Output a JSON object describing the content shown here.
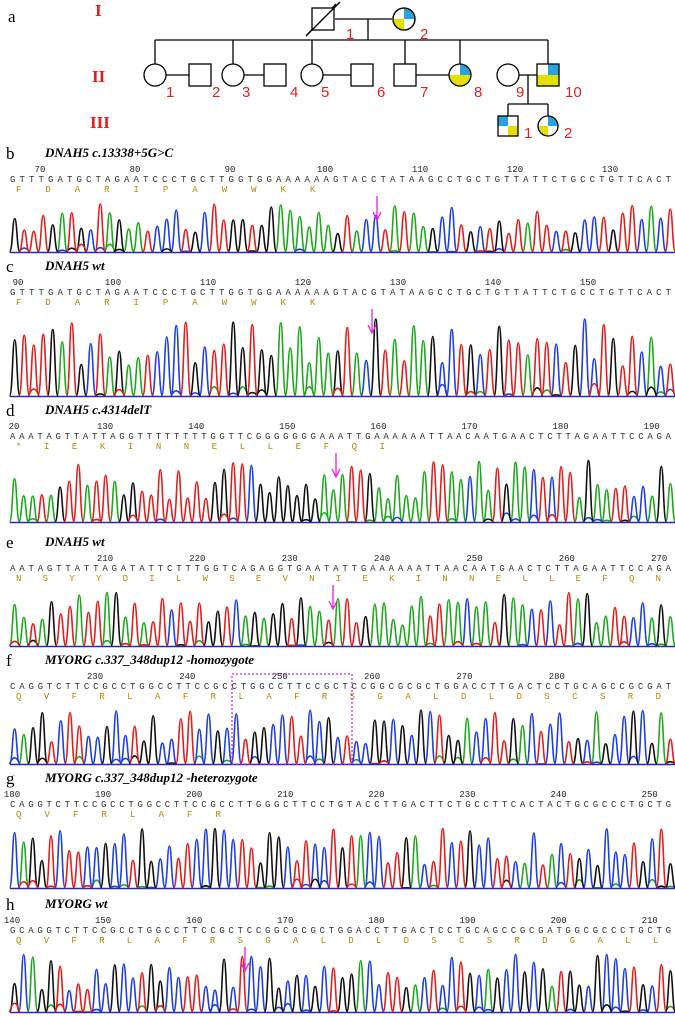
{
  "pedigree": {
    "label": "a",
    "generations": [
      "I",
      "II",
      "III"
    ],
    "individuals": {
      "I": [
        "1",
        "2"
      ],
      "II": [
        "1",
        "2",
        "3",
        "4",
        "5",
        "6",
        "7",
        "8",
        "9",
        "10"
      ],
      "III": [
        "1",
        "2"
      ]
    }
  },
  "panels": [
    {
      "label": "b",
      "title": "DNAH5 c.13338+5G>C",
      "positions": [
        70,
        80,
        90,
        100,
        110,
        120,
        130
      ],
      "sequence": "GTTTGATGCTAGAATCCCTGCTTGGTGGAAAAAAGTACCTATAAGCCTGCTGTTATTCTGCCTGTTCACT",
      "aa": "F D A R I P A W W K K"
    },
    {
      "label": "c",
      "title": "DNAH5  wt",
      "positions": [
        90,
        100,
        110,
        120,
        130,
        140,
        150
      ],
      "sequence": "GTTTGATGCTAGAATCCCTGCTTGGTGGAAAAAAGTACGTATAAGCCTGCTGTTATTCTGCCTGTTCACT",
      "aa": "F D A R I P A W W K K"
    },
    {
      "label": "d",
      "title": "DNAH5 c.4314delT",
      "positions": [
        20,
        130,
        140,
        150,
        160,
        170,
        180,
        190
      ],
      "sequence": "AAATAGTTATTAGGTTTTTTTTGGTTCGGGGGGGAAATTGAAAAAATTAACAATGAACTCTTAGAATTCCAGA",
      "aa": "* I E K I N N E L L E F Q I"
    },
    {
      "label": "e",
      "title": "DNAH5 wt",
      "positions": [
        210,
        220,
        230,
        240,
        250,
        260,
        270
      ],
      "sequence": "AATAGTTATTAGATATTCTTTGGTCAGAGGTGAATATTGAAAAAATTAACAATGAACTCTTAGAATTCCAGA",
      "aa": "N S Y Y D I L W S E V N I E K I N N E L L E F Q N"
    },
    {
      "label": "f",
      "title": "MYORG c.337_348dup12 -homozygote",
      "positions": [
        230,
        240,
        250,
        260,
        270,
        280
      ],
      "sequence": "CAGGTCTTCCGCCTGGCCTTCCGCCTGGCCTTCCGCTCCGGCGCGCTGGACCTTGACTCCTGCAGCCGCGAT",
      "aa": "Q V F R L A F R L A F R S G A L D L D S C S R D"
    },
    {
      "label": "g",
      "title": "MYORG c.337_348dup12 -heterozygote",
      "positions": [
        180,
        190,
        200,
        210,
        220,
        230,
        240,
        250
      ],
      "sequence": "CAGGTCTTCCGCCTGGCCTTCCGCCTTGGGCTTCCTGTACCTTGACTTCTGCCTTCACTACTGCGCCCTGCTG",
      "aa": "Q V F R L A F R"
    },
    {
      "label": "h",
      "title": "MYORG wt",
      "positions": [
        140,
        150,
        160,
        170,
        180,
        190,
        200,
        210
      ],
      "sequence": "GCAGGTCTTCCGCCTGGCCTTCCGCTCCGGCGCGCTGGACCTTGACTCCTGCAGCCGCGATGGCGCCCTGCTG",
      "aa": "Q V F R L A F R S G A L D L D S C S R D G A L L"
    }
  ]
}
